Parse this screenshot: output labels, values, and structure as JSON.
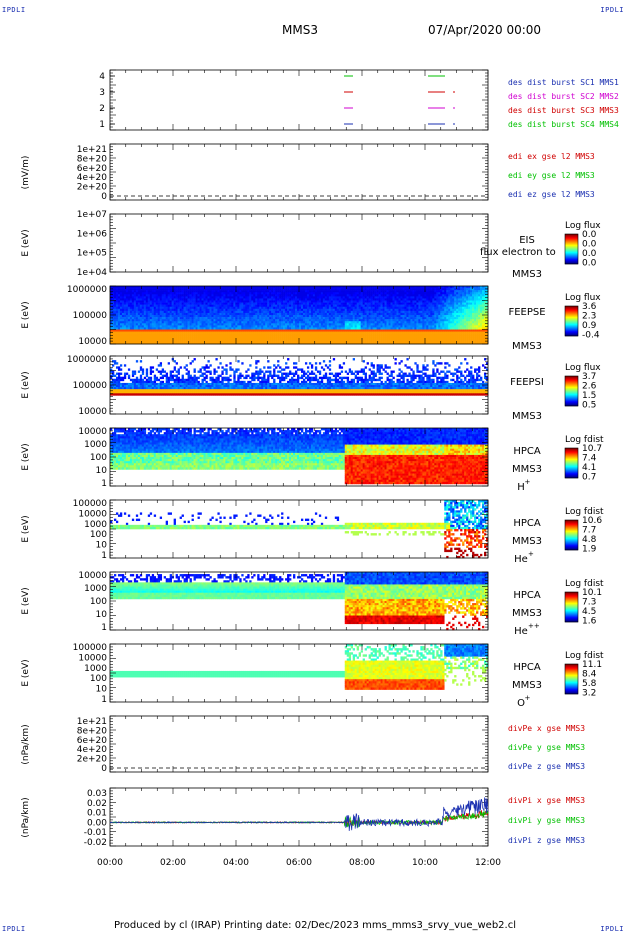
{
  "corners": {
    "tl": "IPDLI",
    "tr": "IPDLI",
    "bl": "IPDLI",
    "br": "IPDLI"
  },
  "header": {
    "spacecraft": "MMS3",
    "datetime": "07/Apr/2020 00:00"
  },
  "footer": "Produced by cl (IRAP)    Printing date: 02/Dec/2023    mms_mms3_srvy_vue_web2.cl",
  "colors": {
    "axis": "#000000",
    "label_blue": "#1a2fb0",
    "label_magenta": "#d000d0",
    "label_red": "#d00000",
    "label_green": "#00c000"
  },
  "chart_data": {
    "type": "stacked-timeseries",
    "x_range": [
      "00:00",
      "12:00"
    ],
    "x_ticks": [
      "00:00",
      "02:00",
      "04:00",
      "06:00",
      "08:00",
      "10:00",
      "12:00"
    ],
    "panels": [
      {
        "id": "burst",
        "ylabel": "",
        "yticks": [
          "4",
          "3",
          "2",
          "1"
        ],
        "series": [
          {
            "name": "des dist burst SC1 MMS1",
            "color": "#1a2fb0"
          },
          {
            "name": "des dist burst SC2 MMS2",
            "color": "#d000d0"
          },
          {
            "name": "des dist burst SC3 MMS3",
            "color": "#d00000"
          },
          {
            "name": "des dist burst SC4 MMS4",
            "color": "#00c000"
          }
        ]
      },
      {
        "id": "edi",
        "ylabel": "(mV/m)",
        "yticks": [
          "1e+21",
          "8e+20",
          "6e+20",
          "4e+20",
          "2e+20",
          "0"
        ],
        "series": [
          {
            "name": "edi ex gse l2 MMS3",
            "color": "#d00000"
          },
          {
            "name": "edi ey gse l2 MMS3",
            "color": "#00c000"
          },
          {
            "name": "edi ez gse l2 MMS3",
            "color": "#1a2fb0"
          }
        ]
      },
      {
        "id": "eis",
        "ylabel": "E (eV)",
        "yticks": [
          "1e+07",
          "1e+06",
          "1e+05",
          "1e+04"
        ],
        "labels": [
          "EIS",
          "MMS3"
        ],
        "overlay": "flux electron to",
        "cbar_title": "Log flux",
        "cbar_ticks": [
          "0.0",
          "0.0",
          "0.0",
          "0.0"
        ]
      },
      {
        "id": "feepse",
        "ylabel": "E (eV)",
        "yticks": [
          "1000000",
          "100000",
          "10000"
        ],
        "labels": [
          "FEEPSE",
          "MMS3"
        ],
        "cbar_title": "Log flux",
        "cbar_ticks": [
          "3.6",
          "2.3",
          "0.9",
          "-0.4"
        ]
      },
      {
        "id": "feepsi",
        "ylabel": "E (eV)",
        "yticks": [
          "1000000",
          "100000",
          "10000"
        ],
        "labels": [
          "FEEPSI",
          "MMS3"
        ],
        "cbar_title": "Log flux",
        "cbar_ticks": [
          "3.7",
          "2.6",
          "1.5",
          "0.5"
        ]
      },
      {
        "id": "hpca_h",
        "ylabel": "E (eV)",
        "yticks": [
          "10000",
          "1000",
          "100",
          "10",
          "1"
        ],
        "labels": [
          "HPCA",
          "MMS3",
          "H",
          "+"
        ],
        "cbar_title": "Log fdist",
        "cbar_ticks": [
          "10.7",
          "7.4",
          "4.1",
          "0.7"
        ]
      },
      {
        "id": "hpca_he",
        "ylabel": "E (eV)",
        "yticks": [
          "100000",
          "10000",
          "1000",
          "100",
          "10",
          "1"
        ],
        "labels": [
          "HPCA",
          "MMS3",
          "He",
          "+"
        ],
        "cbar_title": "Log fdist",
        "cbar_ticks": [
          "10.6",
          "7.7",
          "4.8",
          "1.9"
        ]
      },
      {
        "id": "hpca_hepp",
        "ylabel": "E (eV)",
        "yticks": [
          "10000",
          "1000",
          "100",
          "10",
          "1"
        ],
        "labels": [
          "HPCA",
          "MMS3",
          "He",
          "++"
        ],
        "cbar_title": "Log fdist",
        "cbar_ticks": [
          "10.1",
          "7.3",
          "4.5",
          "1.6"
        ]
      },
      {
        "id": "hpca_o",
        "ylabel": "E (eV)",
        "yticks": [
          "100000",
          "10000",
          "1000",
          "100",
          "10",
          "1"
        ],
        "labels": [
          "HPCA",
          "MMS3",
          "O",
          "+"
        ],
        "cbar_title": "Log fdist",
        "cbar_ticks": [
          "11.1",
          "8.4",
          "5.8",
          "3.2"
        ]
      },
      {
        "id": "divpe",
        "ylabel": "(nPa/km)",
        "yticks": [
          "1e+21",
          "8e+20",
          "6e+20",
          "4e+20",
          "2e+20",
          "0"
        ],
        "series": [
          {
            "name": "divPe x gse MMS3",
            "color": "#d00000"
          },
          {
            "name": "divPe y gse MMS3",
            "color": "#00c000"
          },
          {
            "name": "divPe z gse MMS3",
            "color": "#1a2fb0"
          }
        ]
      },
      {
        "id": "divpi",
        "ylabel": "(nPa/km)",
        "yticks": [
          "0.03",
          "0.02",
          "0.01",
          "0.00",
          "-0.01",
          "-0.02"
        ],
        "series": [
          {
            "name": "divPi x gse MMS3",
            "color": "#d00000"
          },
          {
            "name": "divPi y gse MMS3",
            "color": "#00c000"
          },
          {
            "name": "divPi z gse MMS3",
            "color": "#1a2fb0"
          }
        ]
      }
    ]
  }
}
